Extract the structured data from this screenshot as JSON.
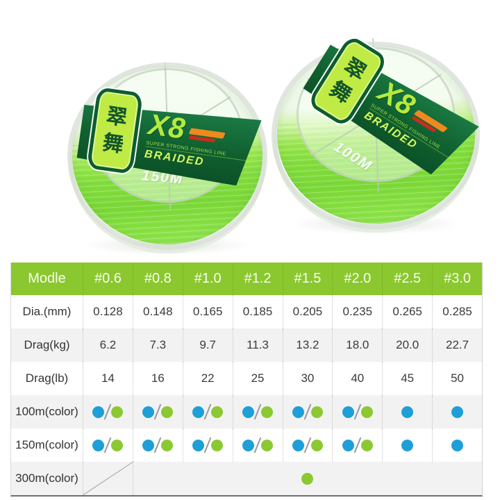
{
  "product": {
    "spools": [
      {
        "brand_char_1": "翠",
        "brand_char_2": "舞",
        "model": "X8",
        "tagline": "SUPER STRONG FISHING LINE",
        "type_label": "BRAIDED",
        "length_label": "150M"
      },
      {
        "brand_char_1": "翠",
        "brand_char_2": "舞",
        "model": "X8",
        "tagline": "SUPER STRONG FISHING LINE",
        "type_label": "BRAIDED",
        "length_label": "100M"
      }
    ],
    "line_color_hex": "#82DD3C",
    "label_bg_hex": "#10602F"
  },
  "table": {
    "headers": [
      "Modle",
      "#0.6",
      "#0.8",
      "#1.0",
      "#1.2",
      "#1.5",
      "#2.0",
      "#2.5",
      "#3.0"
    ],
    "rows": [
      {
        "label": "Dia.(mm)",
        "type": "values",
        "values": [
          "0.128",
          "0.148",
          "0.165",
          "0.185",
          "0.205",
          "0.235",
          "0.265",
          "0.285"
        ]
      },
      {
        "label": "Drag(kg)",
        "type": "values",
        "values": [
          "6.2",
          "7.3",
          "9.7",
          "11.3",
          "13.2",
          "18.0",
          "20.0",
          "22.7"
        ]
      },
      {
        "label": "Drag(lb)",
        "type": "values",
        "values": [
          "14",
          "16",
          "22",
          "25",
          "30",
          "40",
          "45",
          "50"
        ]
      },
      {
        "label": "100m(color)",
        "type": "colors",
        "values": [
          "blue/green",
          "blue/green",
          "blue/green",
          "blue/green",
          "blue/green",
          "blue/green",
          "blue",
          "blue"
        ]
      },
      {
        "label": "150m(color)",
        "type": "colors",
        "values": [
          "blue/green",
          "blue/green",
          "blue/green",
          "blue/green",
          "blue/green",
          "blue/green",
          "blue",
          "blue"
        ]
      },
      {
        "label": "300m(color)",
        "type": "colors",
        "merged_after_first": true,
        "values": [
          "na",
          "",
          "",
          "",
          "green",
          "",
          "",
          ""
        ]
      }
    ],
    "colors": {
      "header_bg": "#8BC72F",
      "dot_blue": "#1E9FD8",
      "dot_green": "#8CC832",
      "alt_row_bg": "#F2F2F2"
    }
  }
}
